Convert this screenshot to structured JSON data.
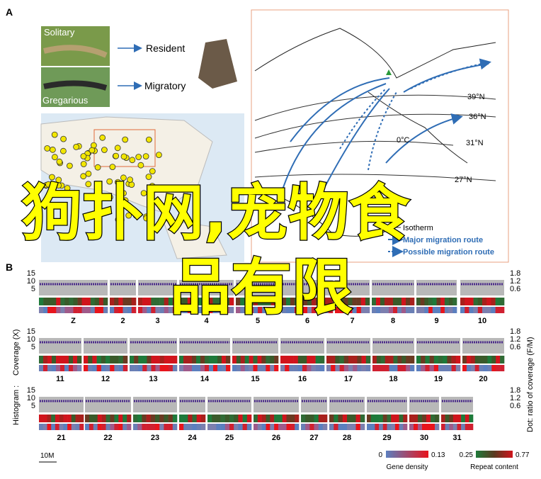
{
  "panel_a": {
    "label": "A",
    "phenotypes": [
      "Solitary",
      "Gregarious"
    ],
    "types": [
      "Resident",
      "Migratory"
    ],
    "latitudes": [
      "39°N",
      "36°N",
      "31°N",
      "27°N"
    ],
    "isotherm_value": "0°C",
    "legend": [
      "Isotherm",
      "Major migration route",
      "Possible migration route"
    ]
  },
  "panel_b": {
    "label": "B",
    "y_left": [
      "Histogram :",
      "Coverage (X)"
    ],
    "y_right": "Dot: ratio of coverage (F/M)",
    "left_ticks": [
      "15",
      "10",
      "5"
    ],
    "right_ticks": [
      "1.8",
      "1.2",
      "0.6"
    ],
    "rows": [
      [
        "Z",
        "2",
        "3",
        "4",
        "5",
        "6",
        "7",
        "8",
        "9",
        "10"
      ],
      [
        "11",
        "12",
        "13",
        "14",
        "15",
        "16",
        "17",
        "18",
        "19",
        "20"
      ],
      [
        "21",
        "22",
        "23",
        "24",
        "25",
        "26",
        "27",
        "28",
        "29",
        "30",
        "31"
      ]
    ],
    "scale": "10M",
    "gene_density": {
      "title": "Gene density",
      "min": "0",
      "max": "0.13"
    },
    "repeat_content": {
      "title": "Repeat content",
      "min": "0.25",
      "max": "0.77"
    }
  },
  "watermark": [
    "狗扑网,宠物食",
    "品有限"
  ]
}
